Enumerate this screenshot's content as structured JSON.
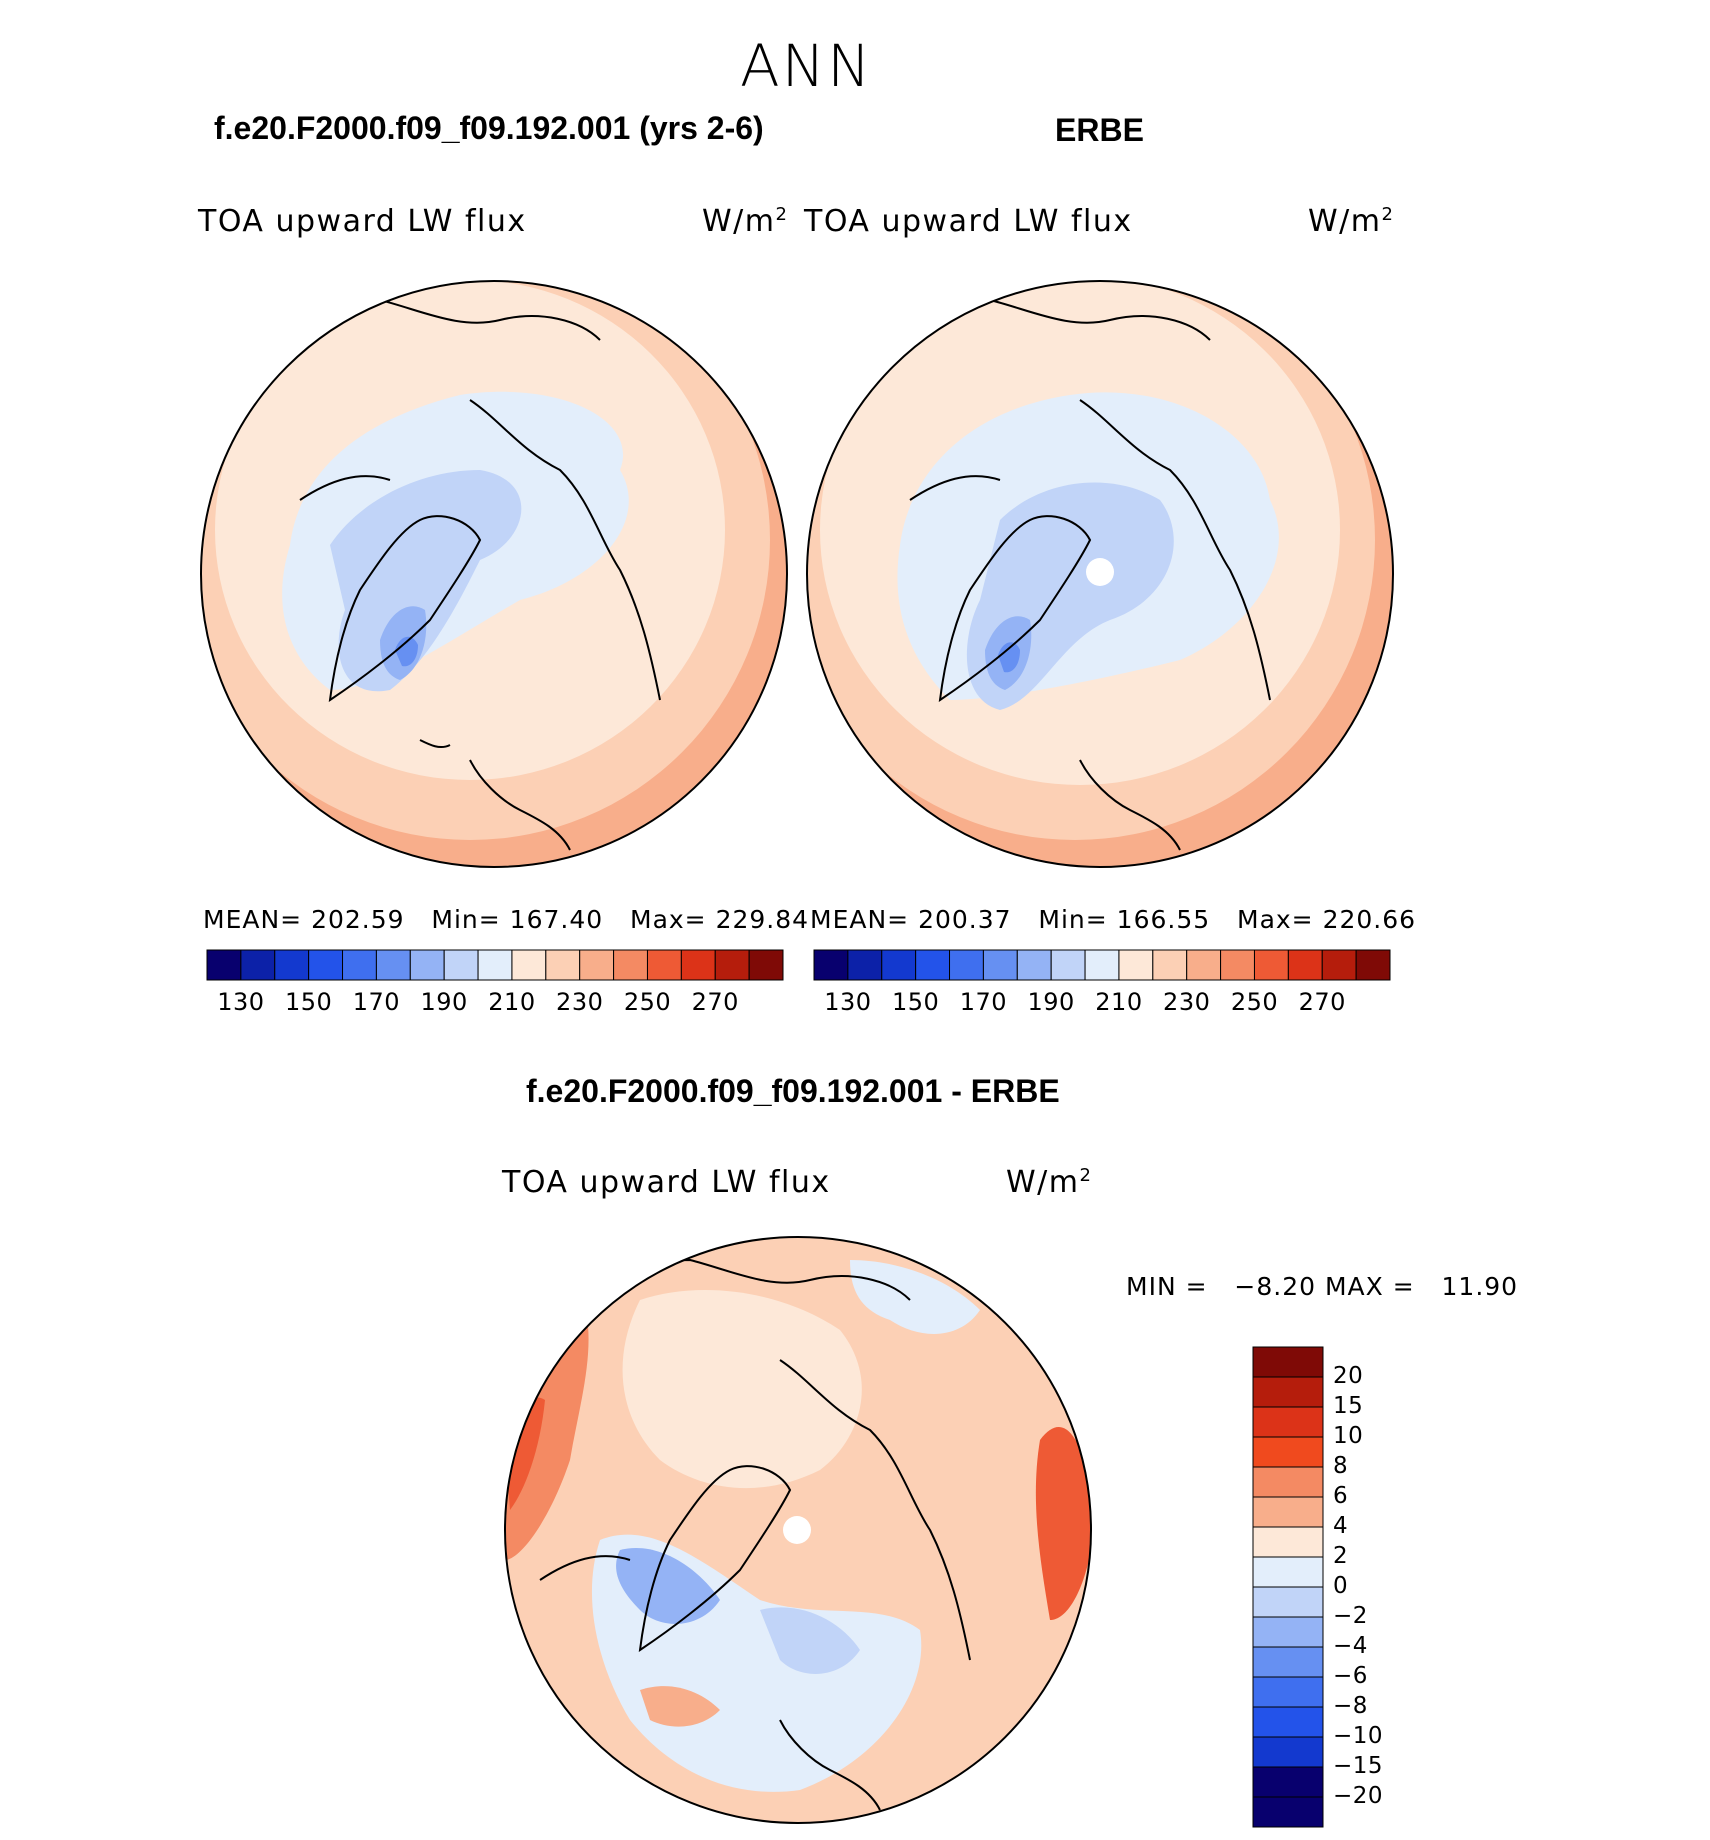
{
  "figure": {
    "season": "ANN",
    "diff_title": "f.e20.F2000.f09_f09.192.001 - ERBE"
  },
  "panels": {
    "model": {
      "title": "f.e20.F2000.f09_f09.192.001 (yrs 2-6)",
      "variable": "TOA upward LW flux",
      "units": "W/m",
      "mean_label": "MEAN=",
      "mean": "202.59",
      "min_label": "Min=",
      "min": "167.40",
      "max_label": "Max=",
      "max": "229.84"
    },
    "obs": {
      "title": "ERBE",
      "variable": "TOA upward LW flux",
      "units": "W/m",
      "mean_label": "MEAN=",
      "mean": "200.37",
      "min_label": "Min=",
      "min": "166.55",
      "max_label": "Max=",
      "max": "220.66"
    },
    "diff": {
      "variable": "TOA upward LW flux",
      "units": "W/m",
      "min_label": "MIN =",
      "min": "−8.20",
      "max_label": "MAX =",
      "max": "11.90"
    }
  },
  "colorbar_abs": {
    "colors": [
      "#08006e",
      "#0c21a8",
      "#1339cf",
      "#2353ea",
      "#3f6fef",
      "#6690f2",
      "#94b3f5",
      "#c1d4f8",
      "#e3eefb",
      "#fde8d8",
      "#fcd0b5",
      "#f8ae8b",
      "#f48a63",
      "#ee5a35",
      "#dc3318",
      "#b51d0c",
      "#7f0a06"
    ],
    "ticks": [
      "130",
      "150",
      "170",
      "190",
      "210",
      "230",
      "250",
      "270"
    ]
  },
  "colorbar_diff": {
    "colors": [
      "#7f0a06",
      "#b51d0c",
      "#dc3318",
      "#f04a1e",
      "#f48a63",
      "#f8ae8b",
      "#fde8d8",
      "#e3eefb",
      "#c1d4f8",
      "#94b3f5",
      "#6690f2",
      "#3f6fef",
      "#2353ea",
      "#1339cf",
      "#08006e"
    ],
    "ticks": [
      "20",
      "15",
      "10",
      "8",
      "6",
      "4",
      "2",
      "0",
      "−2",
      "−4",
      "−6",
      "−8",
      "−10",
      "−15",
      "−20"
    ]
  }
}
